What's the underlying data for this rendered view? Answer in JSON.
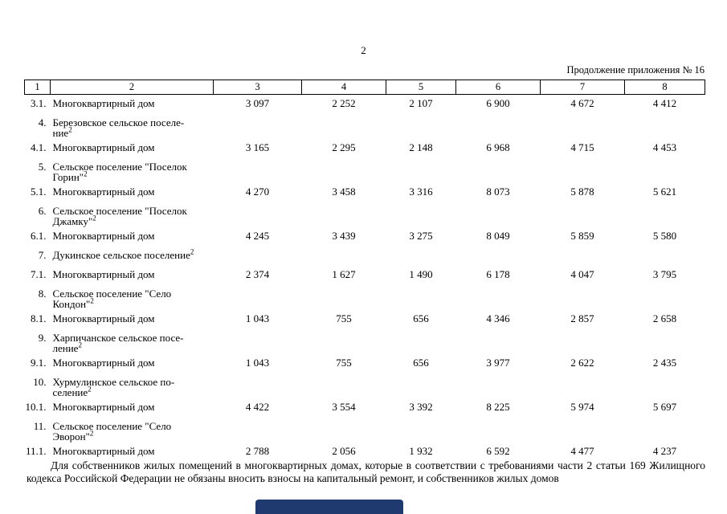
{
  "page": {
    "number": "2",
    "continuation": "Продолжение приложения № 16"
  },
  "table": {
    "header": [
      "1",
      "2",
      "3",
      "4",
      "5",
      "6",
      "7",
      "8"
    ],
    "rows": [
      {
        "num": "3.1.",
        "name": "Многоквартирный дом",
        "sup": "",
        "values": [
          "3 097",
          "2 252",
          "2 107",
          "6 900",
          "4 672",
          "4 412"
        ]
      },
      {
        "num": "4.",
        "name": "Березовское сельское поселе-\nние",
        "sup": "2",
        "values": []
      },
      {
        "num": "4.1.",
        "name": "Многоквартирный дом",
        "sup": "",
        "values": [
          "3 165",
          "2 295",
          "2 148",
          "6 968",
          "4 715",
          "4 453"
        ]
      },
      {
        "num": "5.",
        "name": "Сельское поселение \"Поселок\nГорин\"",
        "sup": "2",
        "values": []
      },
      {
        "num": "5.1.",
        "name": "Многоквартирный дом",
        "sup": "",
        "values": [
          "4 270",
          "3 458",
          "3 316",
          "8 073",
          "5 878",
          "5 621"
        ]
      },
      {
        "num": "6.",
        "name": "Сельское поселение \"Поселок\nДжамку\"",
        "sup": "2",
        "values": []
      },
      {
        "num": "6.1.",
        "name": "Многоквартирный дом",
        "sup": "",
        "values": [
          "4 245",
          "3 439",
          "3 275",
          "8 049",
          "5 859",
          "5 580"
        ]
      },
      {
        "num": "7.",
        "name": "Дукинское сельское поселение",
        "sup": "2",
        "values": []
      },
      {
        "num": "7.1.",
        "name": "Многоквартирный дом",
        "sup": "",
        "values": [
          "2 374",
          "1 627",
          "1 490",
          "6 178",
          "4 047",
          "3 795"
        ]
      },
      {
        "num": "8.",
        "name": "Сельское поселение \"Село\nКондон\"",
        "sup": "2",
        "values": []
      },
      {
        "num": "8.1.",
        "name": "Многоквартирный дом",
        "sup": "",
        "values": [
          "1 043",
          "755",
          "656",
          "4 346",
          "2 857",
          "2 658"
        ]
      },
      {
        "num": "9.",
        "name": "Харпичанское сельское посе-\nление",
        "sup": "2",
        "values": []
      },
      {
        "num": "9.1.",
        "name": "Многоквартирный дом",
        "sup": "",
        "values": [
          "1 043",
          "755",
          "656",
          "3 977",
          "2 622",
          "2 435"
        ]
      },
      {
        "num": "10.",
        "name": "Хурмулинское сельское по-\nселение",
        "sup": "2",
        "values": []
      },
      {
        "num": "10.1.",
        "name": "Многоквартирный дом",
        "sup": "",
        "values": [
          "4 422",
          "3 554",
          "3 392",
          "8 225",
          "5 974",
          "5 697"
        ]
      },
      {
        "num": "11.",
        "name": "Сельское поселение \"Село\nЭворон\"",
        "sup": "2",
        "values": []
      },
      {
        "num": "11.1.",
        "name": "Многоквартирный дом",
        "sup": "",
        "values": [
          "2 788",
          "2 056",
          "1 932",
          "6 592",
          "4 477",
          "4 237"
        ]
      }
    ]
  },
  "footnote": {
    "text": "Для собственников жилых помещений в многоквартирных домах, которые в соответствии с требованиями части 2 статьи 169 Жилищного кодекса Российской Федерации не обязаны вносить взносы на капитальный ремонт, и собственников жилых домов"
  },
  "colors": {
    "bottom_bar": "#1e3a6e",
    "text": "#000000",
    "page_background": "#ffffff"
  }
}
